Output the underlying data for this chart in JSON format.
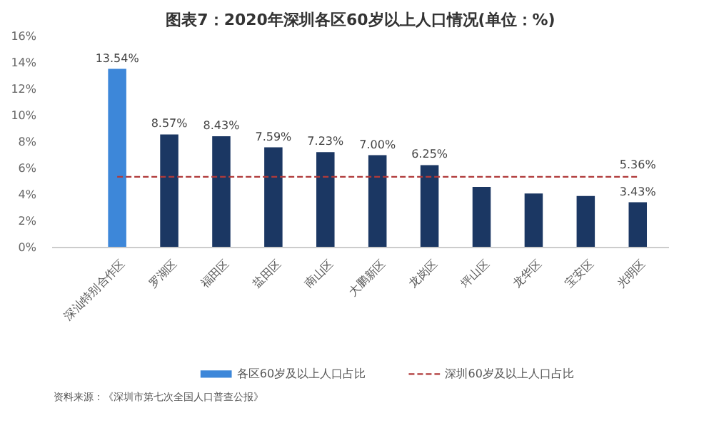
{
  "chart_data": {
    "type": "bar",
    "title": "图表7：2020年深圳各区60岁以上人口情况(单位：%)",
    "categories": [
      "深汕特别合作区",
      "罗湖区",
      "福田区",
      "盐田区",
      "南山区",
      "大鹏新区",
      "龙岗区",
      "坪山区",
      "龙华区",
      "宝安区",
      "光明区"
    ],
    "series": [
      {
        "name": "各区60岁及以上人口占比",
        "colors": [
          "#3d87d9",
          "#1b3763",
          "#1b3763",
          "#1b3763",
          "#1b3763",
          "#1b3763",
          "#1b3763",
          "#1b3763",
          "#1b3763",
          "#1b3763",
          "#1b3763"
        ],
        "values": [
          13.54,
          8.57,
          8.43,
          7.59,
          7.23,
          7.0,
          6.25,
          4.6,
          4.1,
          3.9,
          3.43
        ],
        "value_labels": [
          "13.54%",
          "8.57%",
          "8.43%",
          "7.59%",
          "7.23%",
          "7.00%",
          "6.25%",
          null,
          null,
          null,
          "3.43%"
        ]
      },
      {
        "name": "深圳60岁及以上人口占比",
        "type": "line",
        "color": "#b03a3a",
        "line_style": "dashed",
        "marker": "none",
        "values": [
          5.36,
          5.36,
          5.36,
          5.36,
          5.36,
          5.36,
          5.36,
          5.36,
          5.36,
          5.36,
          5.36
        ],
        "value_labels": [
          null,
          null,
          null,
          null,
          null,
          null,
          null,
          null,
          null,
          null,
          "5.36%"
        ]
      }
    ],
    "ylim": [
      0,
      16
    ],
    "yticks": [
      {
        "value": 0,
        "label": "0%"
      },
      {
        "value": 2,
        "label": "2%"
      },
      {
        "value": 4,
        "label": "4%"
      },
      {
        "value": 6,
        "label": "6%"
      },
      {
        "value": 8,
        "label": "8%"
      },
      {
        "value": 10,
        "label": "10%"
      },
      {
        "value": 12,
        "label": "12%"
      },
      {
        "value": 14,
        "label": "14%"
      },
      {
        "value": 16,
        "label": "16%"
      }
    ],
    "grid": false,
    "legend": "bottom",
    "annotations": [
      "资料来源：《深圳市第七次全国人口普查公报》"
    ]
  }
}
